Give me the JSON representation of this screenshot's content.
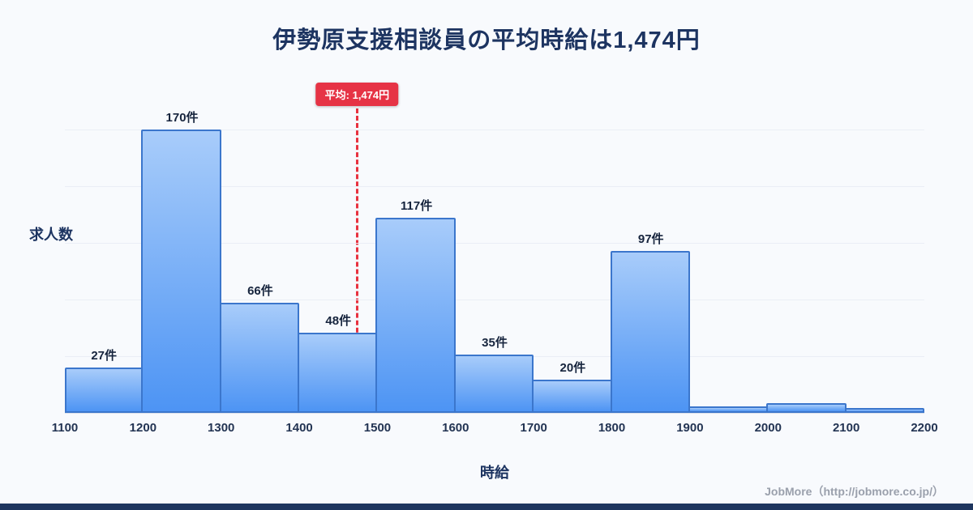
{
  "page": {
    "title": "伊勢原支援相談員の平均時給は1,474円",
    "footer_credit": "JobMore（http://jobmore.co.jp/）"
  },
  "chart_data": {
    "type": "bar",
    "subtype": "histogram",
    "title": "伊勢原支援相談員の平均時給は1,474円",
    "xlabel": "時給",
    "ylabel": "求人数",
    "x_tick_labels": [
      "1100",
      "1200",
      "1300",
      "1400",
      "1500",
      "1600",
      "1700",
      "1800",
      "1900",
      "2000",
      "2100",
      "2200"
    ],
    "bin_edges": [
      1100,
      1200,
      1300,
      1400,
      1500,
      1600,
      1700,
      1800,
      1900,
      2000,
      2100,
      2200
    ],
    "values": [
      27,
      170,
      66,
      48,
      117,
      35,
      20,
      97,
      4,
      6,
      3
    ],
    "bar_labels": [
      "27件",
      "170件",
      "66件",
      "48件",
      "117件",
      "35件",
      "20件",
      "97件",
      "",
      "",
      ""
    ],
    "ylim": [
      0,
      180
    ],
    "grid": true,
    "legend": "none",
    "average_line": {
      "value": 1474,
      "label": "平均: 1,474円"
    },
    "colors": {
      "background": "#f8fafd",
      "title": "#1d3461",
      "bar_top": "#a8ccfa",
      "bar_bottom": "#4d94f4",
      "bar_border": "#3b76cc",
      "average_red": "#e63345",
      "average_line_red": "#e8323f",
      "axis_text": "#233453",
      "footer_text": "#9aa0ac",
      "bottom_bar": "#1e355e"
    }
  }
}
